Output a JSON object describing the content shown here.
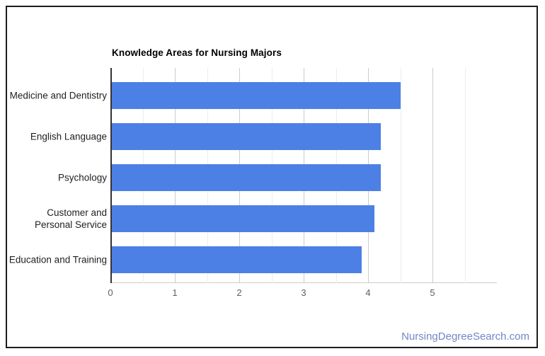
{
  "page": {
    "footer_link": "NursingDegreeSearch.com"
  },
  "chart_data": {
    "type": "bar",
    "orientation": "horizontal",
    "title": "Knowledge Areas for Nursing Majors",
    "categories": [
      "Medicine and Dentistry",
      "English Language",
      "Psychology",
      "Customer and Personal Service",
      "Education and Training"
    ],
    "values": [
      4.5,
      4.2,
      4.2,
      4.1,
      3.9
    ],
    "xlabel": "",
    "ylabel": "",
    "xlim": [
      0,
      6
    ],
    "x_ticks": [
      0,
      1,
      2,
      3,
      4,
      5
    ],
    "minor_tick_step": 0.5,
    "grid": true,
    "legend": "none",
    "bar_color": "#4d80e4",
    "colors": {
      "major_gridline": "#cccccc",
      "minor_gridline": "#ededed",
      "baseline": "#333333",
      "tick_label": "#5f5f5f",
      "category_label": "#212121",
      "title": "#000000",
      "footer_link": "#7186c8"
    }
  }
}
